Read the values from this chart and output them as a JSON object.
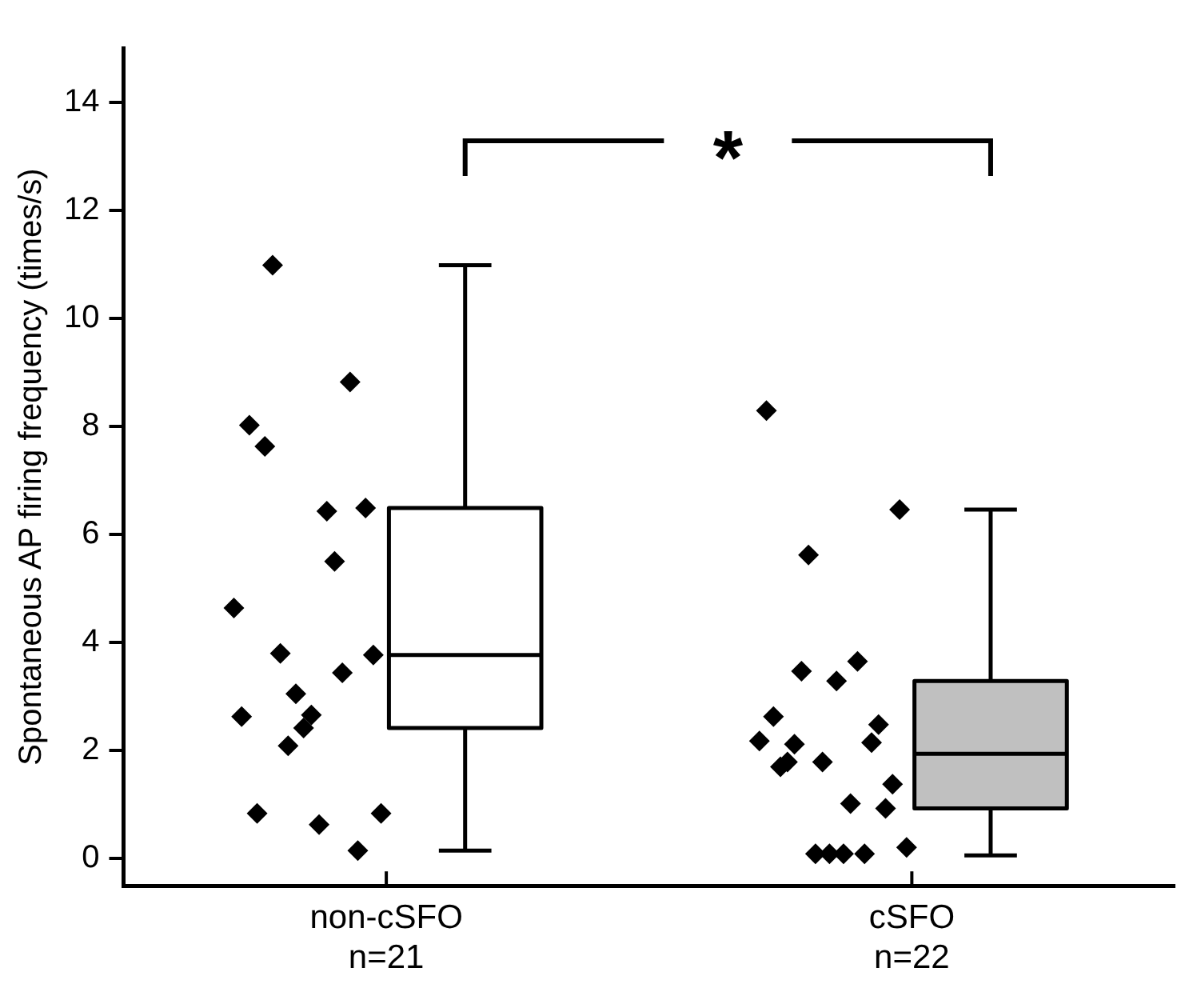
{
  "chart_data": {
    "type": "box",
    "ylabel": "Spontaneous AP firing frequency (times/s)",
    "categories": [
      "non-cSFO\nn=21",
      "cSFO\nn=22"
    ],
    "ylim": [
      -0.5,
      15
    ],
    "yticks": [
      0,
      2,
      4,
      6,
      8,
      10,
      12,
      14
    ],
    "grid": false,
    "legend": false,
    "annotations": [
      "*"
    ],
    "series": [
      {
        "type": "box",
        "colors": [
          "#ffffff",
          "#c0c0c0"
        ],
        "boxes": [
          {
            "low": 0.15,
            "q1": 2.42,
            "median": 3.77,
            "q3": 6.49,
            "high": 10.98
          },
          {
            "low": 0.06,
            "q1": 0.93,
            "median": 1.94,
            "q3": 3.29,
            "high": 6.46
          }
        ]
      },
      {
        "type": "scatter",
        "color": "#000000",
        "marker": "diamond",
        "x": [
          "non-cSFO\nn=21",
          "non-cSFO\nn=21",
          "non-cSFO\nn=21",
          "non-cSFO\nn=21",
          "non-cSFO\nn=21",
          "non-cSFO\nn=21",
          "non-cSFO\nn=21",
          "non-cSFO\nn=21",
          "non-cSFO\nn=21",
          "non-cSFO\nn=21",
          "non-cSFO\nn=21",
          "non-cSFO\nn=21",
          "non-cSFO\nn=21",
          "non-cSFO\nn=21",
          "non-cSFO\nn=21",
          "non-cSFO\nn=21",
          "non-cSFO\nn=21",
          "non-cSFO\nn=21",
          "non-cSFO\nn=21",
          "non-cSFO\nn=21",
          "cSFO\nn=22",
          "cSFO\nn=22",
          "cSFO\nn=22",
          "cSFO\nn=22",
          "cSFO\nn=22",
          "cSFO\nn=22",
          "cSFO\nn=22",
          "cSFO\nn=22",
          "cSFO\nn=22",
          "cSFO\nn=22",
          "cSFO\nn=22",
          "cSFO\nn=22",
          "cSFO\nn=22",
          "cSFO\nn=22",
          "cSFO\nn=22",
          "cSFO\nn=22",
          "cSFO\nn=22",
          "cSFO\nn=22",
          "cSFO\nn=22",
          "cSFO\nn=22",
          "cSFO\nn=22",
          "cSFO\nn=22"
        ],
        "values": [
          4.64,
          2.63,
          8.02,
          0.84,
          7.63,
          10.98,
          3.8,
          2.09,
          3.05,
          2.42,
          2.66,
          0.63,
          6.43,
          5.5,
          3.44,
          8.82,
          0.15,
          6.49,
          3.77,
          0.84,
          2.18,
          8.29,
          2.63,
          1.7,
          1.79,
          2.12,
          3.47,
          5.62,
          0.09,
          1.79,
          0.09,
          3.29,
          0.09,
          1.02,
          3.65,
          0.09,
          2.15,
          2.48,
          0.93,
          1.38,
          6.46,
          0.21
        ]
      }
    ]
  }
}
